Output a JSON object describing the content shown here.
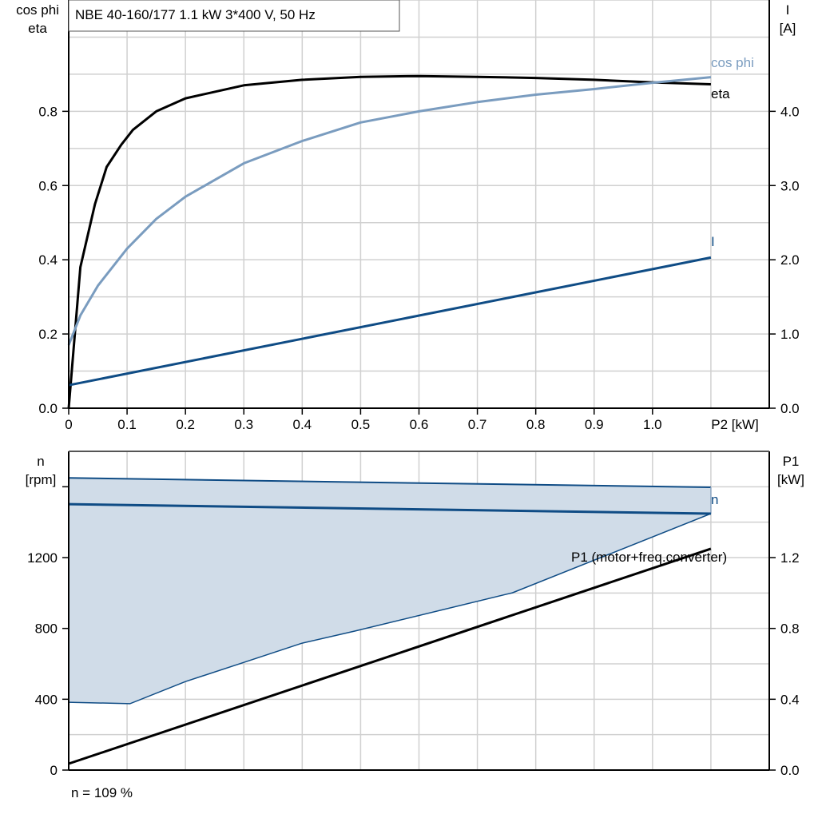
{
  "colors": {
    "eta": "#000000",
    "cos_phi": "#7a9cbf",
    "I": "#0f4c85",
    "n": "#0f4c85",
    "P1": "#000000",
    "range_fill": "#d0dce8",
    "grid": "#d0d0d0"
  },
  "chart_data": [
    {
      "type": "line",
      "title": "NBE 40-160/177   1.1 kW   3*400 V, 50 Hz",
      "xlabel": "P2 [kW]",
      "ylabel_left": [
        "cos phi",
        "eta"
      ],
      "ylabel_right": [
        "I",
        "[A]"
      ],
      "xlim": [
        0,
        1.2
      ],
      "ylim_left": [
        0,
        1.1
      ],
      "ylim_right": [
        0,
        5.5
      ],
      "grid": true,
      "x_ticks": [
        "0",
        "0.1",
        "0.2",
        "0.3",
        "0.4",
        "0.5",
        "0.6",
        "0.7",
        "0.8",
        "0.9",
        "1.0"
      ],
      "y_ticks_left": [
        "0.0",
        "0.2",
        "0.4",
        "0.6",
        "0.8"
      ],
      "y_ticks_right": [
        "0.0",
        "1.0",
        "2.0",
        "3.0",
        "4.0"
      ],
      "series": [
        {
          "name": "eta",
          "axis": "left",
          "x": [
            0,
            0.02,
            0.045,
            0.065,
            0.09,
            0.11,
            0.15,
            0.2,
            0.3,
            0.4,
            0.5,
            0.6,
            0.7,
            0.8,
            0.9,
            1.0,
            1.1
          ],
          "y": [
            0,
            0.38,
            0.55,
            0.65,
            0.71,
            0.75,
            0.8,
            0.835,
            0.87,
            0.885,
            0.893,
            0.895,
            0.893,
            0.89,
            0.885,
            0.878,
            0.873
          ]
        },
        {
          "name": "cos phi",
          "axis": "left",
          "x": [
            0,
            0.02,
            0.05,
            0.1,
            0.15,
            0.2,
            0.3,
            0.4,
            0.5,
            0.6,
            0.7,
            0.8,
            0.9,
            1.0,
            1.1
          ],
          "y": [
            0.17,
            0.25,
            0.33,
            0.43,
            0.51,
            0.57,
            0.66,
            0.72,
            0.77,
            0.8,
            0.825,
            0.845,
            0.86,
            0.877,
            0.892
          ]
        },
        {
          "name": "I",
          "axis": "right",
          "x": [
            0,
            1.1
          ],
          "y": [
            0.31,
            2.03
          ]
        }
      ]
    },
    {
      "type": "line",
      "ylabel_left": [
        "n",
        "[rpm]"
      ],
      "ylabel_right": [
        "P1",
        "[kW]"
      ],
      "xlim": [
        0,
        1.2
      ],
      "ylim_left": [
        0,
        1800
      ],
      "ylim_right": [
        0,
        1.8
      ],
      "grid": true,
      "y_ticks_left": [
        "0",
        "400",
        "800",
        "1200"
      ],
      "y_ticks_right": [
        "0.0",
        "0.4",
        "0.8",
        "1.2"
      ],
      "footer": "n = 109 %",
      "range": {
        "upper": {
          "x": [
            0,
            1.1
          ],
          "y": [
            1650,
            1597
          ]
        },
        "lower": {
          "x": [
            0,
            0.105,
            0.2,
            0.3,
            0.4,
            0.49,
            0.76,
            1.1
          ],
          "y": [
            383,
            375,
            500,
            608,
            717,
            785,
            1001,
            1448
          ]
        }
      },
      "series": [
        {
          "name": "n",
          "axis": "left",
          "x": [
            0,
            1.1
          ],
          "y": [
            1502,
            1448
          ]
        },
        {
          "name": "P1 (motor+freq.converter)",
          "axis": "right",
          "x": [
            0,
            1.1
          ],
          "y": [
            0.036,
            1.25
          ]
        }
      ]
    }
  ]
}
